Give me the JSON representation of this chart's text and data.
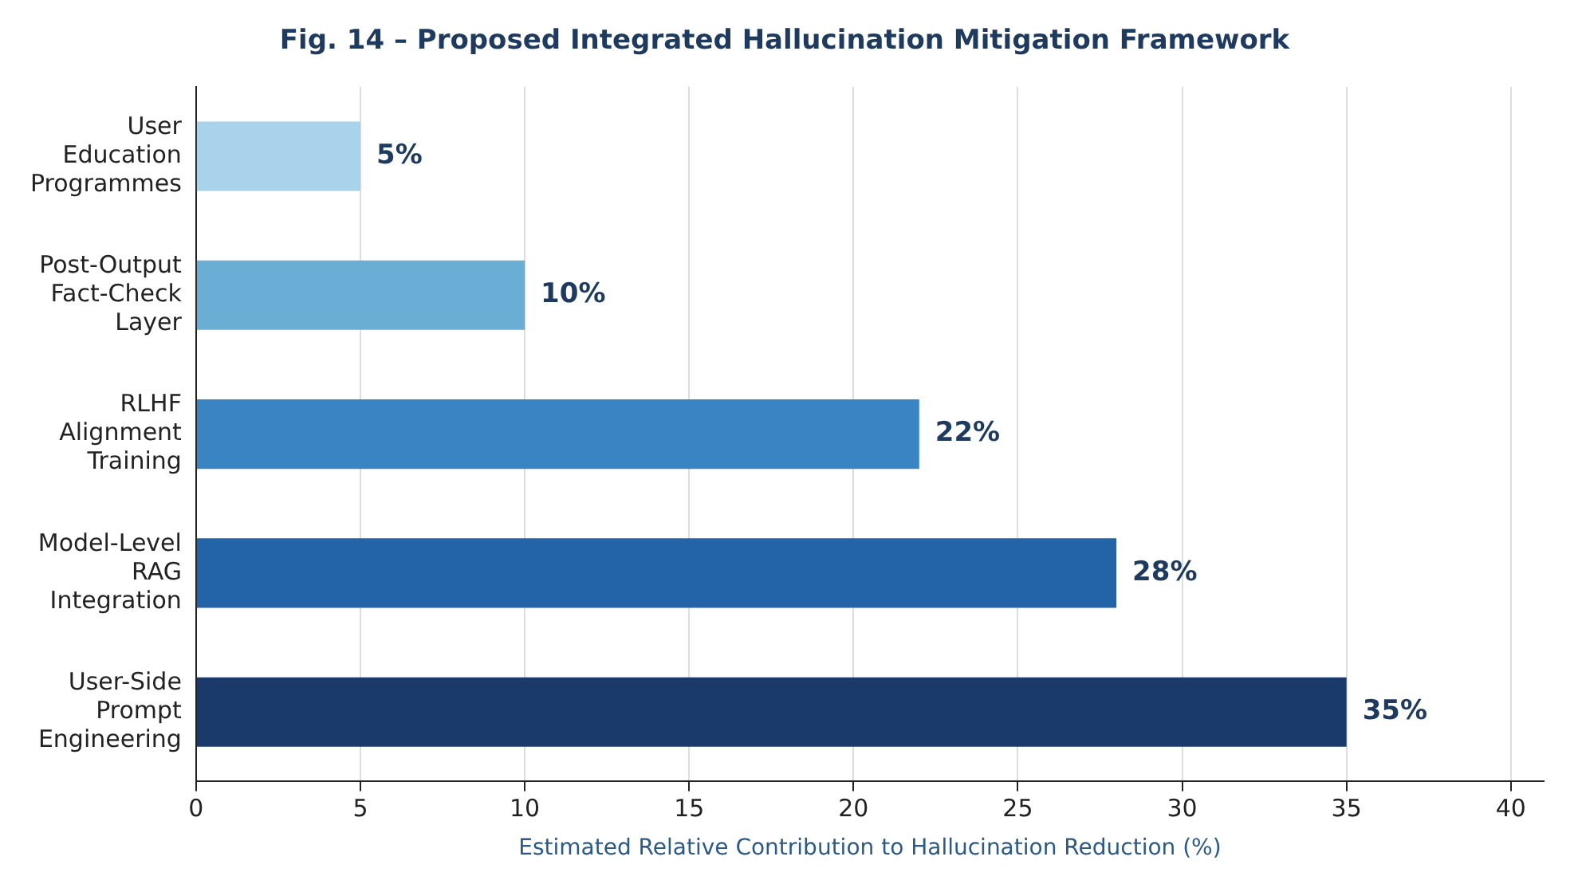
{
  "chart_data": {
    "type": "bar",
    "orientation": "horizontal",
    "title": "Fig. 14 – Proposed Integrated Hallucination Mitigation Framework",
    "xlabel": "Estimated Relative Contribution to Hallucination Reduction (%)",
    "categories": [
      "User Education Programmes",
      "Post-Output Fact-Check Layer",
      "RLHF Alignment Training",
      "Model-Level RAG Integration",
      "User-Side Prompt Engineering"
    ],
    "values": [
      5,
      10,
      22,
      28,
      35
    ],
    "colors": [
      "#a9d2eb",
      "#6aaed6",
      "#3a84c4",
      "#2363a8",
      "#1b3a6c"
    ],
    "value_labels": [
      "5%",
      "10%",
      "22%",
      "28%",
      "35%"
    ],
    "xlim": [
      0,
      41
    ],
    "xticks": [
      0,
      5,
      10,
      15,
      20,
      25,
      30,
      35,
      40
    ],
    "grid": "x",
    "legend": false
  }
}
